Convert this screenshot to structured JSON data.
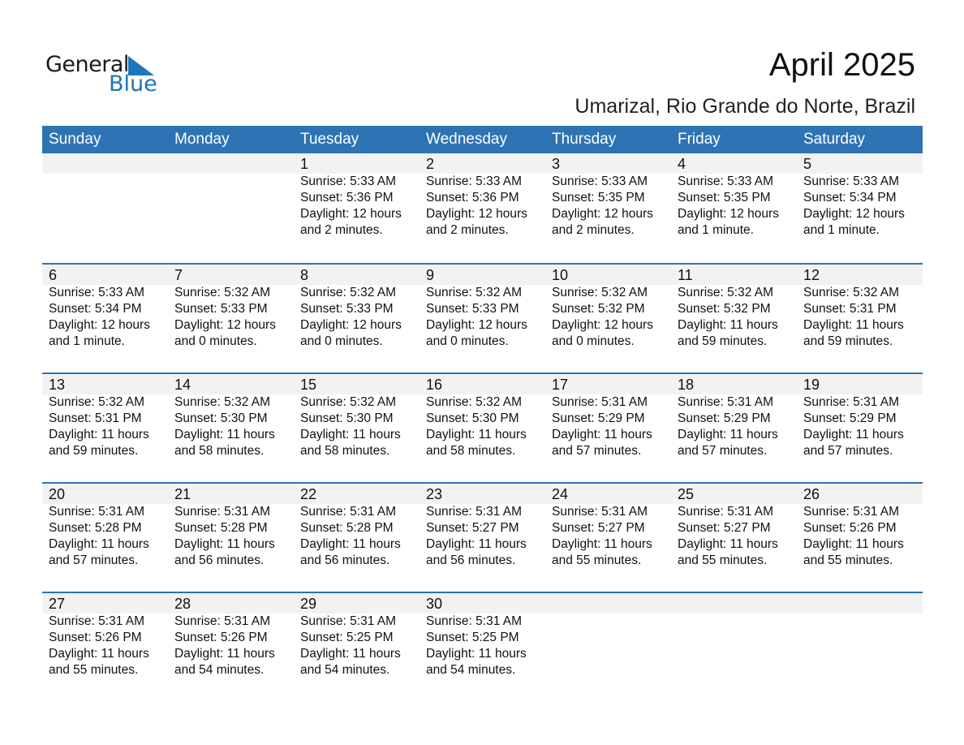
{
  "logo": {
    "general": "General",
    "blue": "Blue",
    "color": "#1d75bb"
  },
  "title": "April 2025",
  "subtitle": "Umarizal, Rio Grande do Norte, Brazil",
  "header_color": "#2e73b4",
  "days": [
    "Sunday",
    "Monday",
    "Tuesday",
    "Wednesday",
    "Thursday",
    "Friday",
    "Saturday"
  ],
  "weeks": [
    [
      null,
      null,
      {
        "day": "1",
        "sunrise": "Sunrise: 5:33 AM",
        "sunset": "Sunset: 5:36 PM",
        "daylight": "Daylight: 12 hours",
        "minutes": "and 2 minutes."
      },
      {
        "day": "2",
        "sunrise": "Sunrise: 5:33 AM",
        "sunset": "Sunset: 5:36 PM",
        "daylight": "Daylight: 12 hours",
        "minutes": "and 2 minutes."
      },
      {
        "day": "3",
        "sunrise": "Sunrise: 5:33 AM",
        "sunset": "Sunset: 5:35 PM",
        "daylight": "Daylight: 12 hours",
        "minutes": "and 2 minutes."
      },
      {
        "day": "4",
        "sunrise": "Sunrise: 5:33 AM",
        "sunset": "Sunset: 5:35 PM",
        "daylight": "Daylight: 12 hours",
        "minutes": "and 1 minute."
      },
      {
        "day": "5",
        "sunrise": "Sunrise: 5:33 AM",
        "sunset": "Sunset: 5:34 PM",
        "daylight": "Daylight: 12 hours",
        "minutes": "and 1 minute."
      }
    ],
    [
      {
        "day": "6",
        "sunrise": "Sunrise: 5:33 AM",
        "sunset": "Sunset: 5:34 PM",
        "daylight": "Daylight: 12 hours",
        "minutes": "and 1 minute."
      },
      {
        "day": "7",
        "sunrise": "Sunrise: 5:32 AM",
        "sunset": "Sunset: 5:33 PM",
        "daylight": "Daylight: 12 hours",
        "minutes": "and 0 minutes."
      },
      {
        "day": "8",
        "sunrise": "Sunrise: 5:32 AM",
        "sunset": "Sunset: 5:33 PM",
        "daylight": "Daylight: 12 hours",
        "minutes": "and 0 minutes."
      },
      {
        "day": "9",
        "sunrise": "Sunrise: 5:32 AM",
        "sunset": "Sunset: 5:33 PM",
        "daylight": "Daylight: 12 hours",
        "minutes": "and 0 minutes."
      },
      {
        "day": "10",
        "sunrise": "Sunrise: 5:32 AM",
        "sunset": "Sunset: 5:32 PM",
        "daylight": "Daylight: 12 hours",
        "minutes": "and 0 minutes."
      },
      {
        "day": "11",
        "sunrise": "Sunrise: 5:32 AM",
        "sunset": "Sunset: 5:32 PM",
        "daylight": "Daylight: 11 hours",
        "minutes": "and 59 minutes."
      },
      {
        "day": "12",
        "sunrise": "Sunrise: 5:32 AM",
        "sunset": "Sunset: 5:31 PM",
        "daylight": "Daylight: 11 hours",
        "minutes": "and 59 minutes."
      }
    ],
    [
      {
        "day": "13",
        "sunrise": "Sunrise: 5:32 AM",
        "sunset": "Sunset: 5:31 PM",
        "daylight": "Daylight: 11 hours",
        "minutes": "and 59 minutes."
      },
      {
        "day": "14",
        "sunrise": "Sunrise: 5:32 AM",
        "sunset": "Sunset: 5:30 PM",
        "daylight": "Daylight: 11 hours",
        "minutes": "and 58 minutes."
      },
      {
        "day": "15",
        "sunrise": "Sunrise: 5:32 AM",
        "sunset": "Sunset: 5:30 PM",
        "daylight": "Daylight: 11 hours",
        "minutes": "and 58 minutes."
      },
      {
        "day": "16",
        "sunrise": "Sunrise: 5:32 AM",
        "sunset": "Sunset: 5:30 PM",
        "daylight": "Daylight: 11 hours",
        "minutes": "and 58 minutes."
      },
      {
        "day": "17",
        "sunrise": "Sunrise: 5:31 AM",
        "sunset": "Sunset: 5:29 PM",
        "daylight": "Daylight: 11 hours",
        "minutes": "and 57 minutes."
      },
      {
        "day": "18",
        "sunrise": "Sunrise: 5:31 AM",
        "sunset": "Sunset: 5:29 PM",
        "daylight": "Daylight: 11 hours",
        "minutes": "and 57 minutes."
      },
      {
        "day": "19",
        "sunrise": "Sunrise: 5:31 AM",
        "sunset": "Sunset: 5:29 PM",
        "daylight": "Daylight: 11 hours",
        "minutes": "and 57 minutes."
      }
    ],
    [
      {
        "day": "20",
        "sunrise": "Sunrise: 5:31 AM",
        "sunset": "Sunset: 5:28 PM",
        "daylight": "Daylight: 11 hours",
        "minutes": "and 57 minutes."
      },
      {
        "day": "21",
        "sunrise": "Sunrise: 5:31 AM",
        "sunset": "Sunset: 5:28 PM",
        "daylight": "Daylight: 11 hours",
        "minutes": "and 56 minutes."
      },
      {
        "day": "22",
        "sunrise": "Sunrise: 5:31 AM",
        "sunset": "Sunset: 5:28 PM",
        "daylight": "Daylight: 11 hours",
        "minutes": "and 56 minutes."
      },
      {
        "day": "23",
        "sunrise": "Sunrise: 5:31 AM",
        "sunset": "Sunset: 5:27 PM",
        "daylight": "Daylight: 11 hours",
        "minutes": "and 56 minutes."
      },
      {
        "day": "24",
        "sunrise": "Sunrise: 5:31 AM",
        "sunset": "Sunset: 5:27 PM",
        "daylight": "Daylight: 11 hours",
        "minutes": "and 55 minutes."
      },
      {
        "day": "25",
        "sunrise": "Sunrise: 5:31 AM",
        "sunset": "Sunset: 5:27 PM",
        "daylight": "Daylight: 11 hours",
        "minutes": "and 55 minutes."
      },
      {
        "day": "26",
        "sunrise": "Sunrise: 5:31 AM",
        "sunset": "Sunset: 5:26 PM",
        "daylight": "Daylight: 11 hours",
        "minutes": "and 55 minutes."
      }
    ],
    [
      {
        "day": "27",
        "sunrise": "Sunrise: 5:31 AM",
        "sunset": "Sunset: 5:26 PM",
        "daylight": "Daylight: 11 hours",
        "minutes": "and 55 minutes."
      },
      {
        "day": "28",
        "sunrise": "Sunrise: 5:31 AM",
        "sunset": "Sunset: 5:26 PM",
        "daylight": "Daylight: 11 hours",
        "minutes": "and 54 minutes."
      },
      {
        "day": "29",
        "sunrise": "Sunrise: 5:31 AM",
        "sunset": "Sunset: 5:25 PM",
        "daylight": "Daylight: 11 hours",
        "minutes": "and 54 minutes."
      },
      {
        "day": "30",
        "sunrise": "Sunrise: 5:31 AM",
        "sunset": "Sunset: 5:25 PM",
        "daylight": "Daylight: 11 hours",
        "minutes": "and 54 minutes."
      },
      null,
      null,
      null
    ]
  ]
}
